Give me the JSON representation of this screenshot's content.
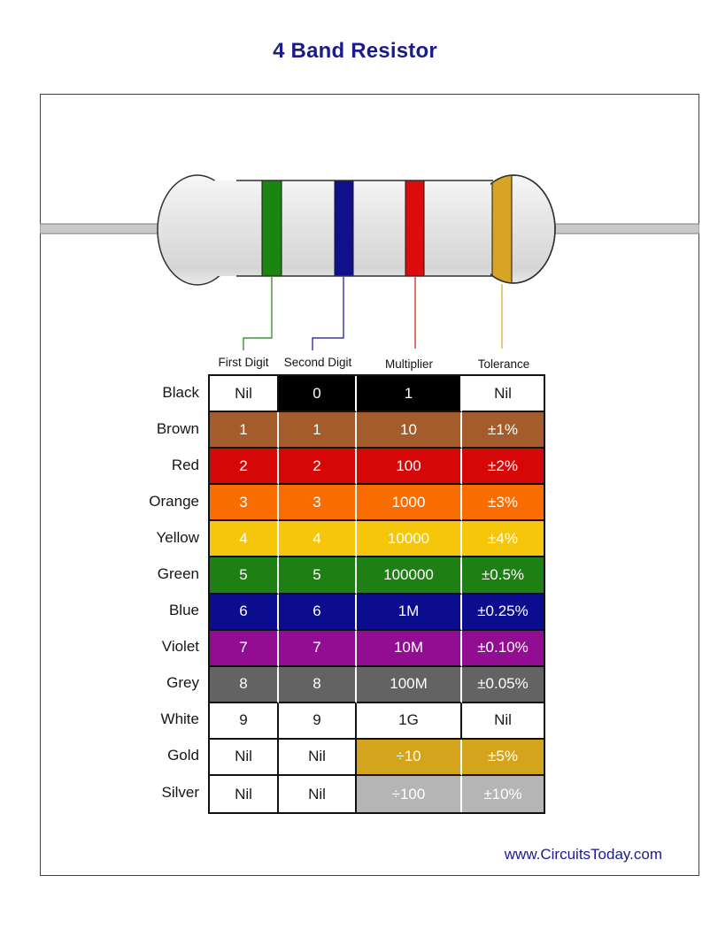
{
  "title": "4 Band Resistor",
  "website": "www.CircuitsToday.com",
  "colors": {
    "title_navy": "#1b1b8c",
    "box_border": "#3f3f3f",
    "resistor_body": "#e3e3e3",
    "wire_grey": "#c9c9c9"
  },
  "resistor": {
    "bands": [
      {
        "name": "first-digit-band",
        "color_name": "Green",
        "hex": "#1c8410"
      },
      {
        "name": "second-digit-band",
        "color_name": "Blue",
        "hex": "#10108c"
      },
      {
        "name": "multiplier-band",
        "color_name": "Red",
        "hex": "#dc0c0c"
      },
      {
        "name": "tolerance-band",
        "color_name": "Gold",
        "hex": "#d9a426"
      }
    ]
  },
  "table": {
    "column_headers": [
      "First Digit",
      "Second Digit",
      "Multiplier",
      "Tolerance"
    ],
    "rows": [
      {
        "label": "Black",
        "hex": "#000000",
        "cells": [
          {
            "v": "Nil",
            "colored": false
          },
          {
            "v": "0",
            "colored": true
          },
          {
            "v": "1",
            "colored": true
          },
          {
            "v": "Nil",
            "colored": false
          }
        ]
      },
      {
        "label": "Brown",
        "hex": "#a45c2d",
        "cells": [
          {
            "v": "1",
            "colored": true
          },
          {
            "v": "1",
            "colored": true
          },
          {
            "v": "10",
            "colored": true
          },
          {
            "v": "±1%",
            "colored": true
          }
        ]
      },
      {
        "label": "Red",
        "hex": "#d50707",
        "cells": [
          {
            "v": "2",
            "colored": true
          },
          {
            "v": "2",
            "colored": true
          },
          {
            "v": "100",
            "colored": true
          },
          {
            "v": "±2%",
            "colored": true
          }
        ]
      },
      {
        "label": "Orange",
        "hex": "#f96d00",
        "cells": [
          {
            "v": "3",
            "colored": true
          },
          {
            "v": "3",
            "colored": true
          },
          {
            "v": "1000",
            "colored": true
          },
          {
            "v": "±3%",
            "colored": true
          }
        ]
      },
      {
        "label": "Yellow",
        "hex": "#f5c60a",
        "cells": [
          {
            "v": "4",
            "colored": true
          },
          {
            "v": "4",
            "colored": true
          },
          {
            "v": "10000",
            "colored": true
          },
          {
            "v": "±4%",
            "colored": true
          }
        ]
      },
      {
        "label": "Green",
        "hex": "#1e7f14",
        "cells": [
          {
            "v": "5",
            "colored": true
          },
          {
            "v": "5",
            "colored": true
          },
          {
            "v": "100000",
            "colored": true
          },
          {
            "v": "±0.5%",
            "colored": true
          }
        ]
      },
      {
        "label": "Blue",
        "hex": "#0c0c8e",
        "cells": [
          {
            "v": "6",
            "colored": true
          },
          {
            "v": "6",
            "colored": true
          },
          {
            "v": "1M",
            "colored": true
          },
          {
            "v": "±0.25%",
            "colored": true
          }
        ]
      },
      {
        "label": "Violet",
        "hex": "#930d93",
        "cells": [
          {
            "v": "7",
            "colored": true
          },
          {
            "v": "7",
            "colored": true
          },
          {
            "v": "10M",
            "colored": true
          },
          {
            "v": "±0.10%",
            "colored": true
          }
        ]
      },
      {
        "label": "Grey",
        "hex": "#636363",
        "cells": [
          {
            "v": "8",
            "colored": true
          },
          {
            "v": "8",
            "colored": true
          },
          {
            "v": "100M",
            "colored": true
          },
          {
            "v": "±0.05%",
            "colored": true
          }
        ]
      },
      {
        "label": "White",
        "hex": "#ffffff",
        "cells": [
          {
            "v": "9",
            "colored": false
          },
          {
            "v": "9",
            "colored": false
          },
          {
            "v": "1G",
            "colored": false
          },
          {
            "v": "Nil",
            "colored": false
          }
        ]
      },
      {
        "label": "Gold",
        "hex": "#d4a41c",
        "cells": [
          {
            "v": "Nil",
            "colored": false
          },
          {
            "v": "Nil",
            "colored": false
          },
          {
            "v": "÷10",
            "colored": true
          },
          {
            "v": "±5%",
            "colored": true
          }
        ]
      },
      {
        "label": "Silver",
        "hex": "#b5b5b5",
        "cells": [
          {
            "v": "Nil",
            "colored": false
          },
          {
            "v": "Nil",
            "colored": false
          },
          {
            "v": "÷100",
            "colored": true
          },
          {
            "v": "±10%",
            "colored": true
          }
        ]
      }
    ]
  }
}
